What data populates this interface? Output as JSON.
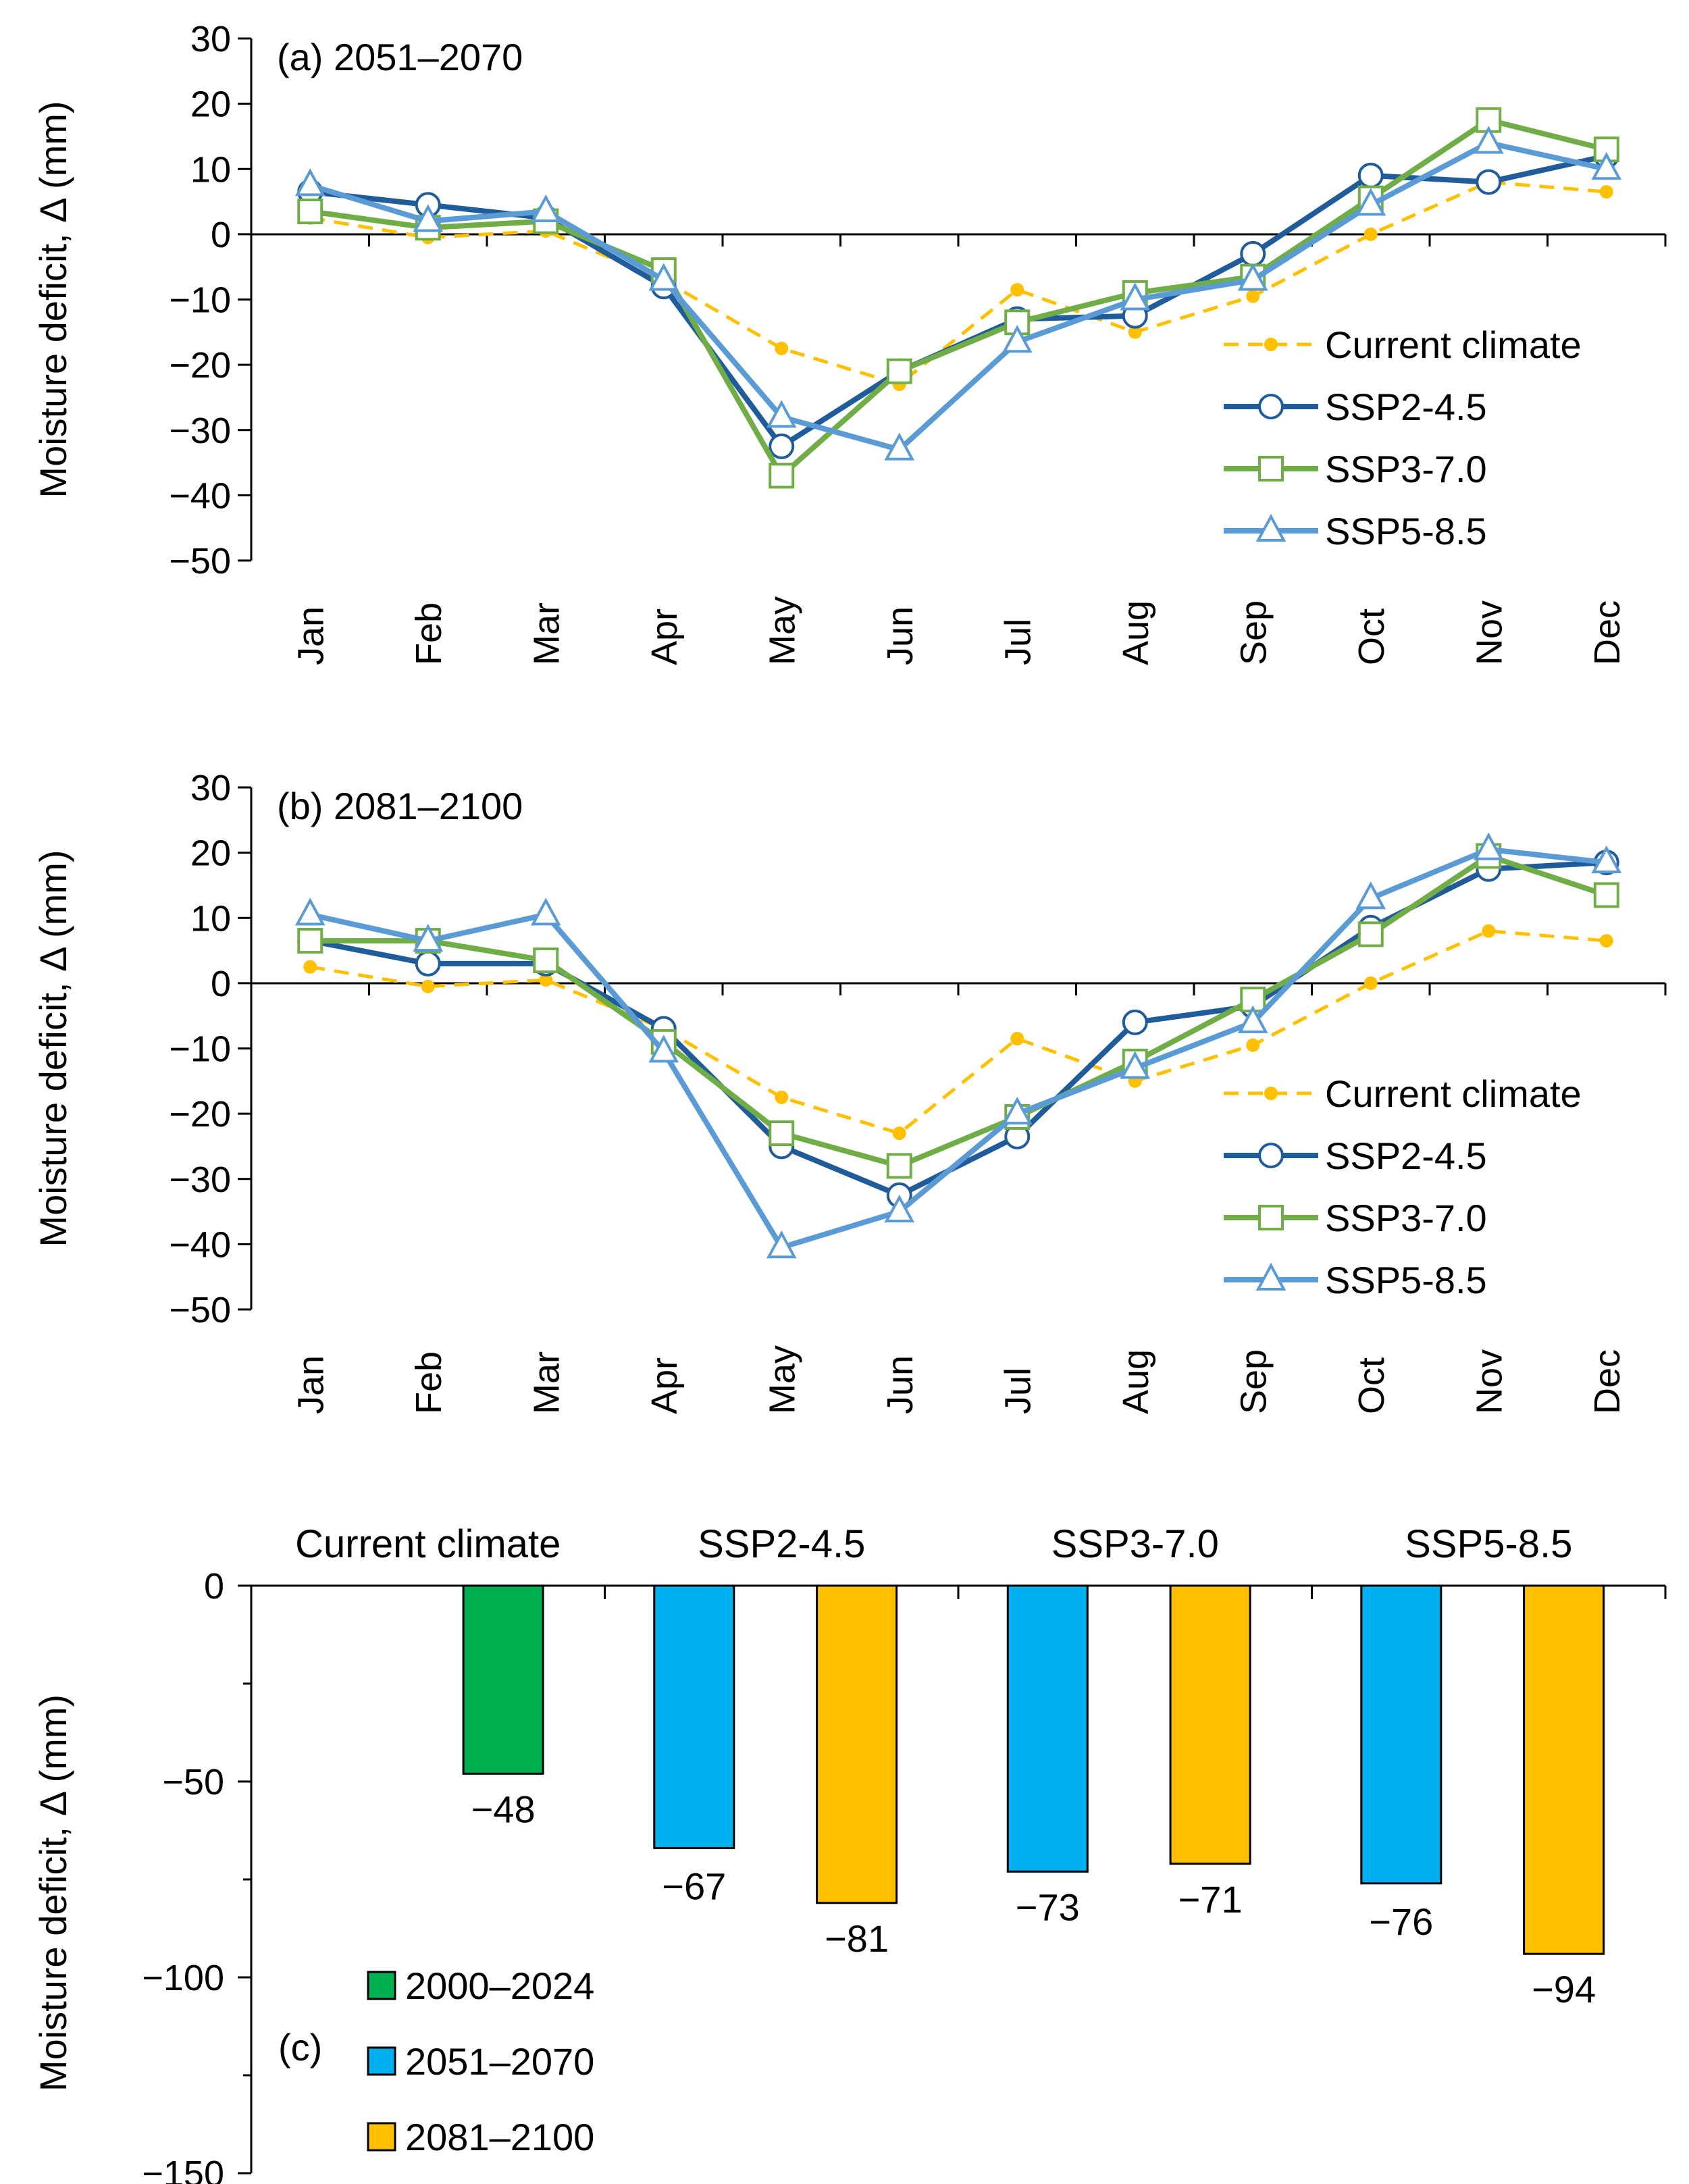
{
  "chart_data": [
    {
      "type": "line",
      "panel_label": "(a) 2051–2070",
      "ylabel": "Moisture deficit, Δ (mm)",
      "ylim": [
        -50,
        30
      ],
      "yticks": [
        30,
        20,
        10,
        0,
        -10,
        -20,
        -30,
        -40,
        -50
      ],
      "ytick_labels": [
        "30",
        "20",
        "10",
        "0",
        "−10",
        "−20",
        "−30",
        "−40",
        "−50"
      ],
      "categories": [
        "Jan",
        "Feb",
        "Mar",
        "Apr",
        "May",
        "Jun",
        "Jul",
        "Aug",
        "Sep",
        "Oct",
        "Nov",
        "Dec"
      ],
      "legend_position": "right-center",
      "series": [
        {
          "name": "Current climate",
          "color": "#FFC000",
          "style": "dashed",
          "marker": "dot",
          "values": [
            2.5,
            -0.5,
            0.5,
            -7,
            -17.5,
            -23,
            -8.5,
            -15,
            -9.5,
            0,
            8,
            6.5
          ]
        },
        {
          "name": "SSP2-4.5",
          "color": "#1F5C99",
          "style": "solid",
          "marker": "circle",
          "values": [
            6.5,
            4.5,
            2.5,
            -8,
            -32.5,
            -21,
            -13,
            -12.5,
            -3,
            9,
            8,
            12
          ]
        },
        {
          "name": "SSP3-7.0",
          "color": "#70AD47",
          "style": "solid",
          "marker": "square",
          "values": [
            3.5,
            1,
            2,
            -5.5,
            -37,
            -21,
            -13.5,
            -9,
            -6.5,
            5.5,
            17.5,
            13
          ]
        },
        {
          "name": "SSP5-8.5",
          "color": "#5B9BD5",
          "style": "solid",
          "marker": "triangle",
          "values": [
            7.5,
            2,
            3.5,
            -7,
            -28,
            -33,
            -16.5,
            -10,
            -7,
            4.5,
            14,
            10
          ]
        }
      ]
    },
    {
      "type": "line",
      "panel_label": "(b) 2081–2100",
      "ylabel": "Moisture deficit, Δ (mm)",
      "ylim": [
        -50,
        30
      ],
      "yticks": [
        30,
        20,
        10,
        0,
        -10,
        -20,
        -30,
        -40,
        -50
      ],
      "ytick_labels": [
        "30",
        "20",
        "10",
        "0",
        "−10",
        "−20",
        "−30",
        "−40",
        "−50"
      ],
      "categories": [
        "Jan",
        "Feb",
        "Mar",
        "Apr",
        "May",
        "Jun",
        "Jul",
        "Aug",
        "Sep",
        "Oct",
        "Nov",
        "Dec"
      ],
      "legend_position": "right-center",
      "series": [
        {
          "name": "Current climate",
          "color": "#FFC000",
          "style": "dashed",
          "marker": "dot",
          "values": [
            2.5,
            -0.5,
            0.5,
            -7,
            -17.5,
            -23,
            -8.5,
            -15,
            -9.5,
            0,
            8,
            6.5
          ]
        },
        {
          "name": "SSP2-4.5",
          "color": "#1F5C99",
          "style": "solid",
          "marker": "circle",
          "values": [
            6.5,
            3,
            3,
            -7,
            -25,
            -32.5,
            -23.5,
            -6,
            -3.5,
            8.5,
            17.5,
            18.5
          ]
        },
        {
          "name": "SSP3-7.0",
          "color": "#70AD47",
          "style": "solid",
          "marker": "square",
          "values": [
            6.5,
            6.5,
            3.5,
            -9,
            -23,
            -28,
            -20.5,
            -12,
            -2.5,
            7.5,
            19.5,
            13.5
          ]
        },
        {
          "name": "SSP5-8.5",
          "color": "#5B9BD5",
          "style": "solid",
          "marker": "triangle",
          "values": [
            10.5,
            6.5,
            10.5,
            -10.5,
            -40.5,
            -35,
            -20,
            -13,
            -6,
            13,
            20.5,
            18.5
          ]
        }
      ]
    },
    {
      "type": "bar",
      "panel_label": "(c)",
      "ylabel": "Moisture deficit, Δ (mm)",
      "ylim": [
        -150,
        0
      ],
      "yticks": [
        0,
        -50,
        -100,
        -150
      ],
      "ytick_labels": [
        "0",
        "−50",
        "−100",
        "−150"
      ],
      "groups": [
        "Current climate",
        "SSP2-4.5",
        "SSP3-7.0",
        "SSP5-8.5"
      ],
      "legend_position": "bottom-left",
      "series": [
        {
          "name": "2000–2024",
          "color": "#00B050",
          "values": [
            -48,
            null,
            null,
            null
          ],
          "labels": [
            "−48",
            "",
            "",
            ""
          ]
        },
        {
          "name": "2051–2070",
          "color": "#00B0F0",
          "values": [
            null,
            -67,
            -73,
            -76
          ],
          "labels": [
            "",
            "−67",
            "−73",
            "−76"
          ]
        },
        {
          "name": "2081–2100",
          "color": "#FFC000",
          "values": [
            null,
            -81,
            -71,
            -94
          ],
          "labels": [
            "",
            "−81",
            "−71",
            "−94"
          ]
        }
      ]
    }
  ]
}
